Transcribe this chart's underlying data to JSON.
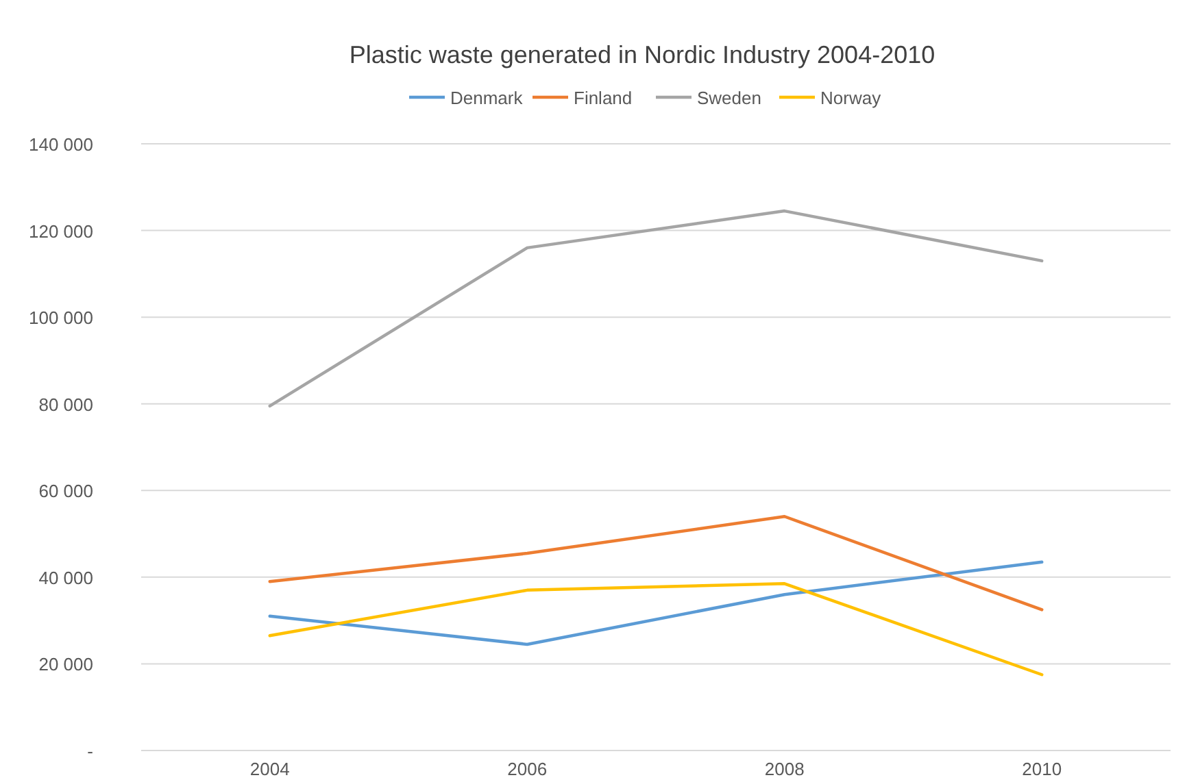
{
  "chart_data": {
    "type": "line",
    "title": "Plastic waste generated in Nordic Industry 2004-2010",
    "categories": [
      "2004",
      "2006",
      "2008",
      "2010"
    ],
    "series": [
      {
        "name": "Denmark",
        "color": "#5b9bd5",
        "values": [
          31000,
          24500,
          36000,
          43500
        ]
      },
      {
        "name": "Finland",
        "color": "#ed7d31",
        "values": [
          39000,
          45500,
          54000,
          32500
        ]
      },
      {
        "name": "Sweden",
        "color": "#a5a5a5",
        "values": [
          79500,
          116000,
          124500,
          113000
        ]
      },
      {
        "name": "Norway",
        "color": "#ffc000",
        "values": [
          26500,
          37000,
          38500,
          17500
        ]
      }
    ],
    "ylim": [
      0,
      140000
    ],
    "yticks": [
      {
        "value": 0,
        "label": "-"
      },
      {
        "value": 20000,
        "label": "20 000"
      },
      {
        "value": 40000,
        "label": "40 000"
      },
      {
        "value": 60000,
        "label": "60 000"
      },
      {
        "value": 80000,
        "label": "80 000"
      },
      {
        "value": 100000,
        "label": "100 000"
      },
      {
        "value": 120000,
        "label": "120 000"
      },
      {
        "value": 140000,
        "label": "140 000"
      }
    ],
    "grid": "y",
    "legend": "top",
    "marker": "none",
    "line_style": "solid"
  }
}
